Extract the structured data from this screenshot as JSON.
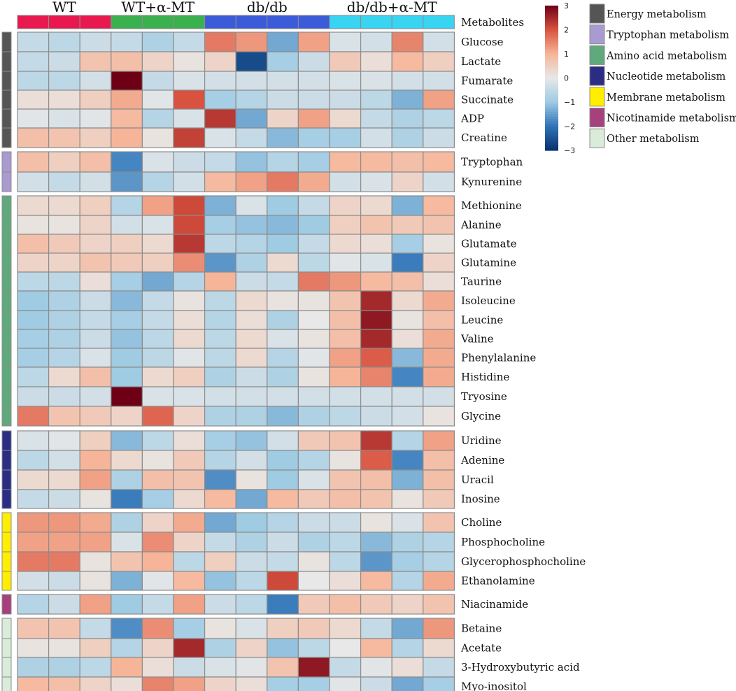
{
  "chart_data": {
    "type": "heatmap",
    "column_label": "Metabolites",
    "groups": [
      {
        "name": "WT",
        "color": "#e8194f",
        "n": 3
      },
      {
        "name": "WT+α-MT",
        "color": "#3ab04f",
        "n": 3
      },
      {
        "name": "db/db",
        "color": "#3b5bd8",
        "n": 4
      },
      {
        "name": "db/db+α-MT",
        "color": "#38d4f2",
        "n": 4
      }
    ],
    "color_scale": {
      "min": -3,
      "max": 3,
      "ticks": [
        3,
        2,
        1,
        0,
        -1,
        -2,
        -3
      ],
      "stops": [
        {
          "v": -3,
          "c": "#08306b"
        },
        {
          "v": -2,
          "c": "#2f73b8"
        },
        {
          "v": -1,
          "c": "#9fcbe3"
        },
        {
          "v": 0,
          "c": "#e8e8e8"
        },
        {
          "v": 1,
          "c": "#f6b598"
        },
        {
          "v": 2,
          "c": "#d8523f"
        },
        {
          "v": 3,
          "c": "#6e0016"
        }
      ]
    },
    "categories": [
      {
        "name": "Energy metabolism",
        "color": "#555555",
        "rows": [
          {
            "label": "Glucose",
            "values": [
              -0.5,
              -0.6,
              -0.4,
              -0.5,
              -0.8,
              -0.5,
              1.6,
              1.3,
              -1.4,
              1.2,
              -0.2,
              -0.3,
              1.5,
              -0.3
            ]
          },
          {
            "label": "Lactate",
            "values": [
              -0.5,
              -0.4,
              0.7,
              0.8,
              0.4,
              0.1,
              0.4,
              -2.6,
              -0.9,
              -0.4,
              0.6,
              0.2,
              0.9,
              0.5
            ]
          },
          {
            "label": "Fumarate",
            "values": [
              -0.6,
              -0.6,
              -0.3,
              3.0,
              -0.5,
              -0.2,
              -0.3,
              -0.3,
              -0.3,
              -0.3,
              -0.2,
              -0.2,
              -0.3,
              -0.3
            ]
          },
          {
            "label": "Succinate",
            "values": [
              0.2,
              0.2,
              0.5,
              1.1,
              -0.1,
              2.0,
              -0.9,
              -0.7,
              -0.4,
              -0.4,
              -0.4,
              -0.6,
              -1.3,
              1.2
            ]
          },
          {
            "label": "ADP",
            "values": [
              -0.1,
              -0.2,
              -0.1,
              0.9,
              -0.7,
              -0.2,
              2.3,
              -1.4,
              0.4,
              1.2,
              0.3,
              -0.5,
              -0.8,
              -0.6
            ]
          },
          {
            "label": "Creatine",
            "values": [
              0.8,
              0.7,
              0.5,
              1.0,
              0.1,
              2.2,
              -0.2,
              -0.5,
              -1.2,
              -0.9,
              -0.9,
              -0.3,
              -0.8,
              -0.4
            ]
          }
        ]
      },
      {
        "name": "Tryptophan metabolism",
        "color": "#a99bd0",
        "rows": [
          {
            "label": "Tryptophan",
            "values": [
              0.8,
              0.5,
              0.8,
              -1.8,
              -0.2,
              -0.4,
              -0.5,
              -1.1,
              -0.7,
              -0.9,
              0.9,
              0.9,
              0.8,
              0.9
            ]
          },
          {
            "label": "Kynurenine",
            "values": [
              -0.3,
              -0.5,
              -0.3,
              -1.6,
              -0.7,
              -0.3,
              0.9,
              1.2,
              1.6,
              1.1,
              -0.3,
              -0.2,
              0.4,
              -0.3
            ]
          }
        ]
      },
      {
        "name": "Amino acid metabolism",
        "color": "#5fa97c",
        "rows": [
          {
            "label": "Methionine",
            "values": [
              0.3,
              0.3,
              0.5,
              -0.7,
              1.2,
              2.1,
              -1.3,
              -0.2,
              -1.0,
              -0.5,
              0.4,
              0.3,
              -1.3,
              0.9
            ]
          },
          {
            "label": "Alanine",
            "values": [
              0.1,
              0.1,
              0.4,
              -0.3,
              -0.2,
              2.1,
              -0.9,
              -1.1,
              -1.2,
              -1.0,
              0.5,
              0.7,
              0.6,
              0.7
            ]
          },
          {
            "label": "Glutamate",
            "values": [
              0.8,
              0.6,
              0.4,
              0.5,
              0.3,
              2.3,
              -0.6,
              -0.7,
              -1.0,
              -0.5,
              0.3,
              0.2,
              -0.9,
              0.1
            ]
          },
          {
            "label": "Glutamine",
            "values": [
              0.4,
              0.4,
              0.7,
              0.6,
              0.5,
              1.4,
              -1.6,
              -0.8,
              0.3,
              -0.6,
              -0.1,
              -0.2,
              -1.9,
              0.4
            ]
          },
          {
            "label": "Taurine",
            "values": [
              -0.6,
              -0.6,
              0.2,
              -0.9,
              -1.4,
              -0.7,
              1.0,
              -0.4,
              -0.5,
              1.6,
              1.3,
              0.9,
              0.8,
              0.2
            ]
          },
          {
            "label": "Isoleucine",
            "values": [
              -1.0,
              -0.8,
              -0.4,
              -1.2,
              -0.5,
              0.1,
              -0.6,
              0.3,
              0.1,
              0.1,
              0.7,
              2.5,
              0.3,
              1.1
            ]
          },
          {
            "label": "Leucine",
            "values": [
              -1.0,
              -0.8,
              -0.5,
              -0.9,
              -0.5,
              0.2,
              -0.7,
              0.2,
              -0.8,
              0.0,
              0.8,
              2.7,
              0.1,
              0.8
            ]
          },
          {
            "label": "Valine",
            "values": [
              -0.9,
              -0.8,
              -0.4,
              -1.1,
              -0.6,
              0.3,
              -0.6,
              0.3,
              -0.2,
              0.1,
              0.8,
              2.5,
              0.2,
              1.1
            ]
          },
          {
            "label": "Phenylalanine",
            "values": [
              -0.9,
              -0.7,
              -0.2,
              -1.0,
              -0.6,
              -0.1,
              -0.6,
              0.3,
              -0.7,
              -0.1,
              1.2,
              1.9,
              -1.2,
              1.1
            ]
          },
          {
            "label": "Histidine",
            "values": [
              -0.6,
              0.3,
              0.8,
              -1.0,
              0.3,
              0.5,
              -0.8,
              -0.4,
              -0.8,
              0.1,
              1.0,
              1.5,
              -1.8,
              1.1
            ]
          },
          {
            "label": "Tryosine",
            "values": [
              -0.4,
              -0.4,
              -0.3,
              3.0,
              -0.2,
              -0.2,
              -0.3,
              -0.3,
              -0.3,
              -0.3,
              -0.3,
              -0.3,
              -0.3,
              -0.3
            ]
          },
          {
            "label": "Glycine",
            "values": [
              1.6,
              0.7,
              0.6,
              0.4,
              1.8,
              0.4,
              -0.8,
              -0.8,
              -1.2,
              -0.8,
              -0.6,
              -0.4,
              -0.3,
              0.1
            ]
          }
        ]
      },
      {
        "name": "Nucleotide metabolism",
        "color": "#2b2d84",
        "rows": [
          {
            "label": "Uridine",
            "values": [
              -0.2,
              -0.1,
              0.5,
              -1.2,
              -0.6,
              0.2,
              -0.9,
              -1.1,
              -0.3,
              0.6,
              0.7,
              2.3,
              -0.7,
              1.2
            ]
          },
          {
            "label": "Adenine",
            "values": [
              -0.6,
              -0.3,
              1.0,
              0.3,
              0.1,
              0.6,
              -0.7,
              -0.3,
              -1.0,
              -0.7,
              0.1,
              1.9,
              -1.8,
              0.8
            ]
          },
          {
            "label": "Uracil",
            "values": [
              0.3,
              0.3,
              1.2,
              -0.8,
              0.8,
              0.7,
              -1.7,
              0.1,
              -1.0,
              -0.2,
              0.7,
              0.8,
              -1.3,
              0.8
            ]
          },
          {
            "label": "Inosine",
            "values": [
              -0.5,
              -0.4,
              0.1,
              -1.9,
              -0.9,
              0.3,
              0.9,
              -1.4,
              0.9,
              0.6,
              0.8,
              0.7,
              0.1,
              0.6
            ]
          }
        ]
      },
      {
        "name": "Membrane metabolism",
        "color": "#ffee00",
        "rows": [
          {
            "label": "Choline",
            "values": [
              1.3,
              1.3,
              1.1,
              -0.8,
              0.4,
              1.1,
              -1.4,
              -1.0,
              -0.7,
              -0.4,
              -0.4,
              0.1,
              -0.2,
              0.7
            ]
          },
          {
            "label": "Phosphocholine",
            "values": [
              1.2,
              1.2,
              1.2,
              -0.2,
              1.4,
              0.4,
              -0.5,
              -0.8,
              -0.4,
              -0.8,
              -0.6,
              -1.2,
              -0.8,
              -0.7
            ]
          },
          {
            "label": "Glycerophosphocholine",
            "values": [
              1.6,
              1.6,
              0.1,
              0.7,
              1.0,
              -0.6,
              0.5,
              -0.4,
              -0.5,
              0.1,
              -0.6,
              -1.6,
              -0.9,
              -0.7
            ]
          },
          {
            "label": "Ethanolamine",
            "values": [
              -0.3,
              -0.4,
              0.1,
              -1.3,
              -0.1,
              0.9,
              -1.1,
              -0.6,
              2.1,
              0.0,
              0.2,
              0.9,
              -0.7,
              1.1
            ]
          }
        ]
      },
      {
        "name": "Nicotinamide metabolism",
        "color": "#a6417d",
        "rows": [
          {
            "label": "Niacinamide",
            "values": [
              -0.7,
              -0.4,
              1.2,
              -1.0,
              -0.5,
              1.2,
              -0.4,
              -0.6,
              -1.9,
              0.6,
              0.8,
              0.6,
              0.4,
              0.7
            ]
          }
        ]
      },
      {
        "name": "Other metabolism",
        "color": "#d9ecd9",
        "rows": [
          {
            "label": "Betaine",
            "values": [
              0.7,
              0.7,
              -0.5,
              -1.7,
              1.4,
              -0.9,
              0.1,
              -0.2,
              0.5,
              0.6,
              0.3,
              -0.5,
              -1.4,
              1.3
            ]
          },
          {
            "label": "Acetate",
            "values": [
              0.1,
              0.1,
              0.5,
              -0.7,
              0.4,
              2.5,
              -0.8,
              0.4,
              -1.1,
              -0.6,
              0.0,
              0.9,
              -0.7,
              0.3
            ]
          },
          {
            "label": "3-Hydroxybutyric acid",
            "values": [
              -0.8,
              -0.8,
              -0.6,
              1.0,
              0.2,
              -0.4,
              -0.2,
              -0.1,
              0.7,
              2.7,
              -0.5,
              -0.1,
              0.2,
              -0.5
            ]
          },
          {
            "label": "Myo-inositol",
            "values": [
              0.9,
              0.8,
              0.4,
              0.2,
              1.5,
              1.2,
              0.4,
              0.2,
              -0.9,
              -0.9,
              -0.1,
              -0.4,
              -1.4,
              -0.9
            ]
          }
        ]
      }
    ]
  }
}
